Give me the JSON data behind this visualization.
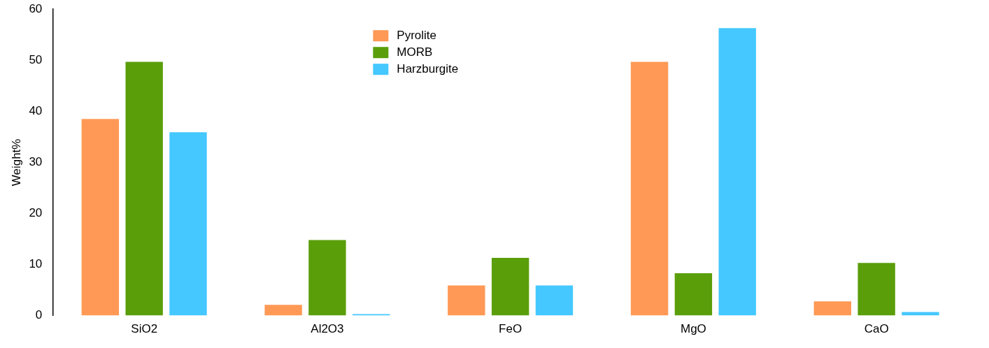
{
  "chart_data": {
    "type": "bar",
    "ylabel": "Weight%",
    "categories": [
      "SiO2",
      "Al2O3",
      "FeO",
      "MgO",
      "CaO"
    ],
    "series": [
      {
        "name": "Pyrolite",
        "color": "#ff9955",
        "values": [
          38.5,
          2.1,
          5.9,
          49.7,
          2.8
        ]
      },
      {
        "name": "MORB",
        "color": "#5a9e0a",
        "values": [
          49.7,
          14.8,
          11.3,
          8.3,
          10.3
        ]
      },
      {
        "name": "Harzburgite",
        "color": "#44c8ff",
        "values": [
          35.9,
          0.3,
          5.9,
          56.3,
          0.7
        ]
      }
    ],
    "ylim": [
      0,
      60
    ],
    "yticks": [
      0,
      10,
      20,
      30,
      40,
      50,
      60
    ],
    "grid": false,
    "legend": "top"
  }
}
